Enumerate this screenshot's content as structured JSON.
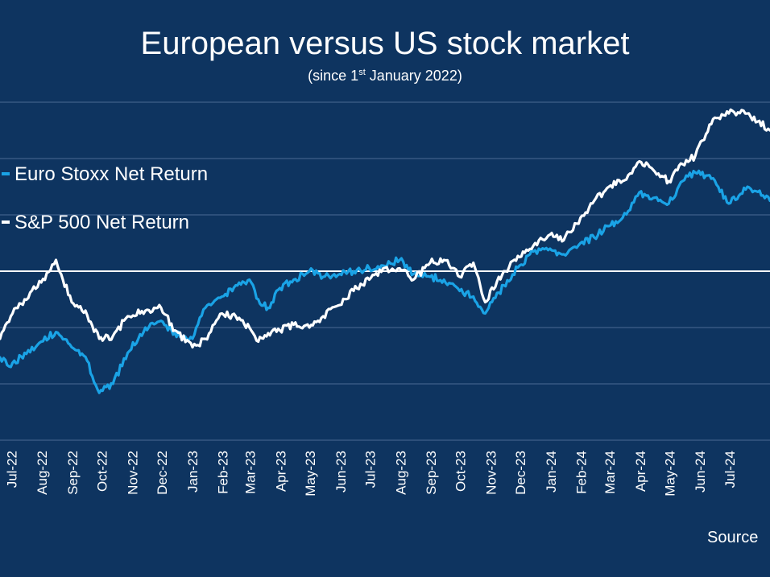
{
  "title": "European versus US stock market",
  "subtitle": {
    "before": "(since 1",
    "superscript": "st",
    "after": " January 2022)"
  },
  "source_text": "Source",
  "colors": {
    "background": "#0e3460",
    "grid": "#4a6a94",
    "baseline": "#ffffff",
    "euro": "#1aa3e6",
    "sp500": "#ffffff"
  },
  "chart_data": {
    "type": "line",
    "title": "European versus US stock market",
    "subtitle": "(since 1st January 2022)",
    "grid": true,
    "legend_position": "top-left",
    "x_tick_labels": [
      "Jul-22",
      "Aug-22",
      "Sep-22",
      "Oct-22",
      "Nov-22",
      "Dec-22",
      "Jan-23",
      "Feb-23",
      "Mar-23",
      "Apr-23",
      "May-23",
      "Jun-23",
      "Jul-23",
      "Aug-23",
      "Sep-23",
      "Oct-23",
      "Nov-23",
      "Dec-23",
      "Jan-24",
      "Feb-24",
      "Mar-24",
      "Apr-24",
      "May-24",
      "Jun-24",
      "Jul-24"
    ],
    "x_range": [
      "2022-06-20",
      "2024-08-12"
    ],
    "y_range": [
      -30,
      30
    ],
    "y_gridlines": [
      -30,
      -20,
      -10,
      0,
      10,
      20,
      30
    ],
    "series": [
      {
        "name": "Euro Stoxx Net Return",
        "color": "#1aa3e6",
        "points": [
          [
            "2022-06-20",
            -15.3
          ],
          [
            "2022-07-01",
            -17.0
          ],
          [
            "2022-07-15",
            -14.5
          ],
          [
            "2022-08-01",
            -12.5
          ],
          [
            "2022-08-16",
            -10.8
          ],
          [
            "2022-09-01",
            -13.5
          ],
          [
            "2022-09-15",
            -15.2
          ],
          [
            "2022-09-29",
            -21.6
          ],
          [
            "2022-10-13",
            -20.0
          ],
          [
            "2022-10-28",
            -14.5
          ],
          [
            "2022-11-15",
            -10.0
          ],
          [
            "2022-12-01",
            -8.8
          ],
          [
            "2022-12-15",
            -11.0
          ],
          [
            "2023-01-02",
            -12.0
          ],
          [
            "2023-01-15",
            -6.5
          ],
          [
            "2023-02-01",
            -4.5
          ],
          [
            "2023-02-15",
            -2.5
          ],
          [
            "2023-03-01",
            -1.5
          ],
          [
            "2023-03-10",
            -5.0
          ],
          [
            "2023-03-20",
            -6.5
          ],
          [
            "2023-04-01",
            -3.0
          ],
          [
            "2023-04-15",
            -1.5
          ],
          [
            "2023-05-01",
            0.0
          ],
          [
            "2023-05-15",
            -1.0
          ],
          [
            "2023-06-01",
            -0.5
          ],
          [
            "2023-06-15",
            0.0
          ],
          [
            "2023-07-01",
            0.5
          ],
          [
            "2023-07-15",
            1.0
          ],
          [
            "2023-08-01",
            2.0
          ],
          [
            "2023-08-15",
            -0.5
          ],
          [
            "2023-09-01",
            -1.0
          ],
          [
            "2023-09-15",
            -1.5
          ],
          [
            "2023-10-01",
            -3.5
          ],
          [
            "2023-10-15",
            -4.5
          ],
          [
            "2023-10-27",
            -7.5
          ],
          [
            "2023-11-15",
            -2.5
          ],
          [
            "2023-12-01",
            1.0
          ],
          [
            "2023-12-15",
            3.5
          ],
          [
            "2024-01-01",
            4.0
          ],
          [
            "2024-01-15",
            3.0
          ],
          [
            "2024-02-01",
            5.0
          ],
          [
            "2024-02-15",
            6.0
          ],
          [
            "2024-03-01",
            8.0
          ],
          [
            "2024-03-15",
            9.5
          ],
          [
            "2024-04-01",
            14.0
          ],
          [
            "2024-04-15",
            13.0
          ],
          [
            "2024-05-01",
            12.0
          ],
          [
            "2024-05-15",
            16.0
          ],
          [
            "2024-05-28",
            17.5
          ],
          [
            "2024-06-15",
            16.5
          ],
          [
            "2024-07-01",
            12.0
          ],
          [
            "2024-07-20",
            15.0
          ],
          [
            "2024-08-12",
            12.5
          ]
        ]
      },
      {
        "name": "S&P 500 Net Return",
        "color": "#ffffff",
        "points": [
          [
            "2022-06-20",
            -12.0
          ],
          [
            "2022-07-01",
            -8.0
          ],
          [
            "2022-07-15",
            -5.0
          ],
          [
            "2022-08-01",
            -2.0
          ],
          [
            "2022-08-16",
            2.0
          ],
          [
            "2022-09-01",
            -5.5
          ],
          [
            "2022-09-15",
            -7.0
          ],
          [
            "2022-09-29",
            -12.0
          ],
          [
            "2022-10-13",
            -11.5
          ],
          [
            "2022-10-28",
            -8.0
          ],
          [
            "2022-11-15",
            -7.0
          ],
          [
            "2022-12-01",
            -6.5
          ],
          [
            "2022-12-15",
            -10.5
          ],
          [
            "2023-01-02",
            -13.5
          ],
          [
            "2023-01-15",
            -12.0
          ],
          [
            "2023-02-01",
            -7.5
          ],
          [
            "2023-02-15",
            -8.0
          ],
          [
            "2023-03-01",
            -10.0
          ],
          [
            "2023-03-10",
            -12.5
          ],
          [
            "2023-03-20",
            -11.0
          ],
          [
            "2023-04-01",
            -10.5
          ],
          [
            "2023-04-15",
            -9.5
          ],
          [
            "2023-05-01",
            -10.0
          ],
          [
            "2023-05-15",
            -8.0
          ],
          [
            "2023-06-01",
            -6.0
          ],
          [
            "2023-06-15",
            -3.5
          ],
          [
            "2023-07-01",
            -1.5
          ],
          [
            "2023-07-15",
            0.5
          ],
          [
            "2023-08-01",
            0.5
          ],
          [
            "2023-08-15",
            -1.5
          ],
          [
            "2023-09-01",
            1.5
          ],
          [
            "2023-09-15",
            2.0
          ],
          [
            "2023-10-01",
            -1.0
          ],
          [
            "2023-10-15",
            1.5
          ],
          [
            "2023-10-27",
            -5.5
          ],
          [
            "2023-11-15",
            0.0
          ],
          [
            "2023-12-01",
            2.5
          ],
          [
            "2023-12-15",
            4.5
          ],
          [
            "2024-01-01",
            6.5
          ],
          [
            "2024-01-15",
            5.5
          ],
          [
            "2024-02-01",
            9.5
          ],
          [
            "2024-02-15",
            12.5
          ],
          [
            "2024-03-01",
            15.0
          ],
          [
            "2024-03-15",
            16.0
          ],
          [
            "2024-04-01",
            19.5
          ],
          [
            "2024-04-15",
            18.0
          ],
          [
            "2024-05-01",
            16.0
          ],
          [
            "2024-05-15",
            19.0
          ],
          [
            "2024-05-28",
            20.5
          ],
          [
            "2024-06-15",
            27.0
          ],
          [
            "2024-07-01",
            28.0
          ],
          [
            "2024-07-16",
            28.5
          ],
          [
            "2024-08-12",
            25.0
          ]
        ]
      }
    ]
  }
}
